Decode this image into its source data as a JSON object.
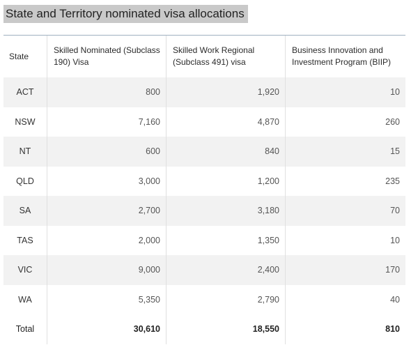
{
  "title": "State and Territory nominated visa allocations",
  "table": {
    "headers": [
      "State",
      "Skilled Nominated (Subclass 190) Visa",
      "Skilled Work Regional (Subclass 491) visa",
      "Business Innovation and Investment Program (BIIP)"
    ],
    "rows": [
      [
        "ACT",
        "800",
        "1,920",
        "10"
      ],
      [
        "NSW",
        "7,160",
        "4,870",
        "260"
      ],
      [
        "NT",
        "600",
        "840",
        "15"
      ],
      [
        "QLD",
        "3,000",
        "1,200",
        "235"
      ],
      [
        "SA",
        "2,700",
        "3,180",
        "70"
      ],
      [
        "TAS",
        "2,000",
        "1,350",
        "10"
      ],
      [
        "VIC",
        "9,000",
        "2,400",
        "170"
      ],
      [
        "WA",
        "5,350",
        "2,790",
        "40"
      ]
    ],
    "total": [
      "Total",
      "30,610",
      "18,550",
      "810"
    ]
  }
}
